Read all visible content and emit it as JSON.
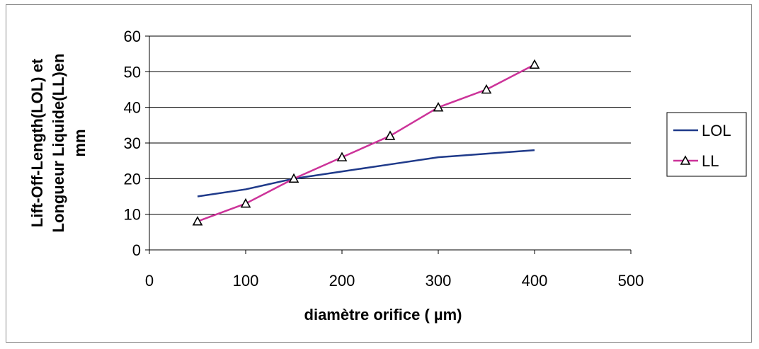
{
  "chart_data": {
    "type": "line",
    "title": "",
    "xlabel": "diamètre orifice ( µm)",
    "ylabel_lines": [
      "Lift-Off-Length(LOL) et",
      "Longueur Liquide(LL)en",
      "mm"
    ],
    "xlim": [
      0,
      500
    ],
    "ylim": [
      0,
      60
    ],
    "xticks": [
      0,
      100,
      200,
      300,
      400,
      500
    ],
    "yticks": [
      0,
      10,
      20,
      30,
      40,
      50,
      60
    ],
    "grid": "horizontal",
    "legend_position": "right",
    "series": [
      {
        "name": "LOL",
        "color": "#1f3a8a",
        "marker": "none",
        "x": [
          50,
          100,
          150,
          200,
          250,
          300,
          350,
          400
        ],
        "y": [
          15,
          17,
          20,
          22,
          24,
          26,
          27,
          28
        ]
      },
      {
        "name": "LL",
        "color": "#cc3399",
        "marker": "triangle",
        "x": [
          50,
          100,
          150,
          200,
          250,
          300,
          350,
          400
        ],
        "y": [
          8,
          13,
          20,
          26,
          32,
          40,
          45,
          52
        ]
      }
    ]
  }
}
